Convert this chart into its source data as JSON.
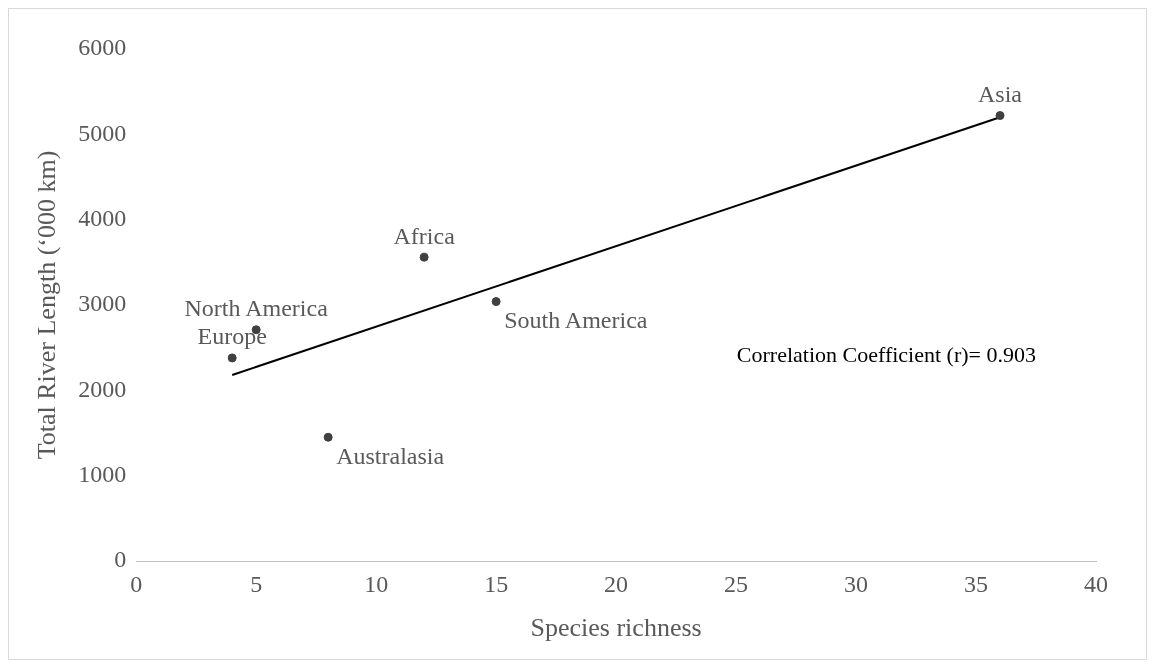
{
  "chart_data": {
    "type": "scatter",
    "xlabel": "Species richness",
    "ylabel": "Total River Length (‘000 km)",
    "xlim": [
      0,
      40
    ],
    "xticks": [
      0,
      5,
      10,
      15,
      20,
      25,
      30,
      35,
      40
    ],
    "ylim": [
      0,
      6000
    ],
    "yticks": [
      0,
      1000,
      2000,
      3000,
      4000,
      5000,
      6000
    ],
    "grid": false,
    "legend": false,
    "marker": "circle",
    "series": [
      {
        "color": "#404040",
        "x": [
          4,
          5,
          8,
          12,
          15,
          36
        ],
        "values": [
          2380,
          2710,
          1450,
          3560,
          3040,
          5220
        ]
      },
      {
        "type": "line",
        "color": "#000000",
        "x": [
          4,
          36
        ],
        "values": [
          2180,
          5200
        ],
        "marker": "none",
        "line_style": "solid"
      }
    ],
    "annotations": [
      {
        "text": "Europe",
        "x": 4,
        "y": 2380
      },
      {
        "text": "North America",
        "x": 5,
        "y": 2710
      },
      {
        "text": "Australasia",
        "x": 8,
        "y": 1450
      },
      {
        "text": "Africa",
        "x": 12,
        "y": 3560
      },
      {
        "text": "South America",
        "x": 15,
        "y": 3040
      },
      {
        "text": "Asia",
        "x": 36,
        "y": 5220
      },
      "Correlation Coefficient (r)= 0.903"
    ]
  }
}
